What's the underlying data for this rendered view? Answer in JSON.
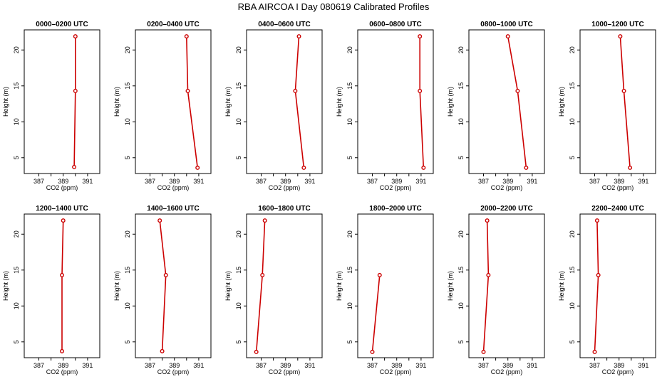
{
  "figure_title": "RBA AIRCOA I  Day 080619  Calibrated Profiles",
  "chart_data": [
    {
      "type": "line",
      "title": "0000–0200 UTC",
      "xlabel": "CO2 (ppm)",
      "ylabel": "Height (m)",
      "xlim": [
        385.8,
        392.0
      ],
      "ylim": [
        2.8,
        22.8
      ],
      "x_ticks": [
        387,
        389,
        391
      ],
      "x_tick_labels": [
        "387",
        "389",
        "391"
      ],
      "x_minor_ticks": [
        388,
        390
      ],
      "y_ticks": [
        5,
        10,
        15,
        20
      ],
      "y_tick_labels": [
        "5",
        "10",
        "15",
        "20"
      ],
      "color": "#cc0000",
      "x": [
        389.9,
        390.0,
        390.0
      ],
      "y": [
        3.7,
        14.3,
        21.9
      ]
    },
    {
      "type": "line",
      "title": "0200–0400 UTC",
      "xlabel": "CO2 (ppm)",
      "ylabel": "Height (m)",
      "xlim": [
        385.8,
        392.0
      ],
      "ylim": [
        2.8,
        22.8
      ],
      "x_ticks": [
        387,
        389,
        391
      ],
      "x_tick_labels": [
        "387",
        "389",
        "391"
      ],
      "x_minor_ticks": [
        388,
        390
      ],
      "y_ticks": [
        5,
        10,
        15,
        20
      ],
      "y_tick_labels": [
        "5",
        "10",
        "15",
        "20"
      ],
      "color": "#cc0000",
      "x": [
        390.9,
        390.1,
        390.0
      ],
      "y": [
        3.6,
        14.3,
        21.9
      ]
    },
    {
      "type": "line",
      "title": "0400–0600 UTC",
      "xlabel": "CO2 (ppm)",
      "ylabel": "Height (m)",
      "xlim": [
        385.8,
        392.0
      ],
      "ylim": [
        2.8,
        22.8
      ],
      "x_ticks": [
        387,
        389,
        391
      ],
      "x_tick_labels": [
        "387",
        "389",
        "391"
      ],
      "x_minor_ticks": [
        388,
        390
      ],
      "y_ticks": [
        5,
        10,
        15,
        20
      ],
      "y_tick_labels": [
        "5",
        "10",
        "15",
        "20"
      ],
      "color": "#cc0000",
      "x": [
        390.5,
        389.8,
        390.1
      ],
      "y": [
        3.6,
        14.3,
        21.9
      ]
    },
    {
      "type": "line",
      "title": "0600–0800 UTC",
      "xlabel": "CO2 (ppm)",
      "ylabel": "Height (m)",
      "xlim": [
        385.8,
        392.0
      ],
      "ylim": [
        2.8,
        22.8
      ],
      "x_ticks": [
        387,
        389,
        391
      ],
      "x_tick_labels": [
        "387",
        "389",
        "391"
      ],
      "x_minor_ticks": [
        388,
        390
      ],
      "y_ticks": [
        5,
        10,
        15,
        20
      ],
      "y_tick_labels": [
        "5",
        "10",
        "15",
        "20"
      ],
      "color": "#cc0000",
      "x": [
        391.2,
        390.9,
        390.9
      ],
      "y": [
        3.6,
        14.3,
        21.9
      ]
    },
    {
      "type": "line",
      "title": "0800–1000 UTC",
      "xlabel": "CO2 (ppm)",
      "ylabel": "Height (m)",
      "xlim": [
        385.8,
        392.0
      ],
      "ylim": [
        2.8,
        22.8
      ],
      "x_ticks": [
        387,
        389,
        391
      ],
      "x_tick_labels": [
        "387",
        "389",
        "391"
      ],
      "x_minor_ticks": [
        388,
        390
      ],
      "y_ticks": [
        5,
        10,
        15,
        20
      ],
      "y_tick_labels": [
        "5",
        "10",
        "15",
        "20"
      ],
      "color": "#cc0000",
      "x": [
        390.5,
        389.8,
        389.0
      ],
      "y": [
        3.6,
        14.3,
        21.9
      ]
    },
    {
      "type": "line",
      "title": "1000–1200 UTC",
      "xlabel": "CO2 (ppm)",
      "ylabel": "Height (m)",
      "xlim": [
        385.8,
        392.0
      ],
      "ylim": [
        2.8,
        22.8
      ],
      "x_ticks": [
        387,
        389,
        391
      ],
      "x_tick_labels": [
        "387",
        "389",
        "391"
      ],
      "x_minor_ticks": [
        388,
        390
      ],
      "y_ticks": [
        5,
        10,
        15,
        20
      ],
      "y_tick_labels": [
        "5",
        "10",
        "15",
        "20"
      ],
      "color": "#cc0000",
      "x": [
        389.9,
        389.4,
        389.1
      ],
      "y": [
        3.6,
        14.3,
        21.9
      ]
    },
    {
      "type": "line",
      "title": "1200–1400 UTC",
      "xlabel": "CO2 (ppm)",
      "ylabel": "Height (m)",
      "xlim": [
        385.8,
        392.0
      ],
      "ylim": [
        2.8,
        22.8
      ],
      "x_ticks": [
        387,
        389,
        391
      ],
      "x_tick_labels": [
        "387",
        "389",
        "391"
      ],
      "x_minor_ticks": [
        388,
        390
      ],
      "y_ticks": [
        5,
        10,
        15,
        20
      ],
      "y_tick_labels": [
        "5",
        "10",
        "15",
        "20"
      ],
      "color": "#cc0000",
      "x": [
        388.9,
        388.9,
        389.0
      ],
      "y": [
        3.7,
        14.3,
        21.9
      ]
    },
    {
      "type": "line",
      "title": "1400–1600 UTC",
      "xlabel": "CO2 (ppm)",
      "ylabel": "Height (m)",
      "xlim": [
        385.8,
        392.0
      ],
      "ylim": [
        2.8,
        22.8
      ],
      "x_ticks": [
        387,
        389,
        391
      ],
      "x_tick_labels": [
        "387",
        "389",
        "391"
      ],
      "x_minor_ticks": [
        388,
        390
      ],
      "y_ticks": [
        5,
        10,
        15,
        20
      ],
      "y_tick_labels": [
        "5",
        "10",
        "15",
        "20"
      ],
      "color": "#cc0000",
      "x": [
        388.0,
        388.3,
        387.8
      ],
      "y": [
        3.7,
        14.3,
        21.9
      ]
    },
    {
      "type": "line",
      "title": "1600–1800 UTC",
      "xlabel": "CO2 (ppm)",
      "ylabel": "Height (m)",
      "xlim": [
        385.8,
        392.0
      ],
      "ylim": [
        2.8,
        22.8
      ],
      "x_ticks": [
        387,
        389,
        391
      ],
      "x_tick_labels": [
        "387",
        "389",
        "391"
      ],
      "x_minor_ticks": [
        388,
        390
      ],
      "y_ticks": [
        5,
        10,
        15,
        20
      ],
      "y_tick_labels": [
        "5",
        "10",
        "15",
        "20"
      ],
      "color": "#cc0000",
      "x": [
        386.6,
        387.1,
        387.3
      ],
      "y": [
        3.6,
        14.3,
        21.9
      ]
    },
    {
      "type": "line",
      "title": "1800–2000 UTC",
      "xlabel": "CO2 (ppm)",
      "ylabel": "Height (m)",
      "xlim": [
        385.8,
        392.0
      ],
      "ylim": [
        2.8,
        22.8
      ],
      "x_ticks": [
        387,
        389,
        391
      ],
      "x_tick_labels": [
        "387",
        "389",
        "391"
      ],
      "x_minor_ticks": [
        388,
        390
      ],
      "y_ticks": [
        5,
        10,
        15,
        20
      ],
      "y_tick_labels": [
        "5",
        "10",
        "15",
        "20"
      ],
      "color": "#cc0000",
      "x": [
        387.0,
        387.6
      ],
      "y": [
        3.6,
        14.3
      ]
    },
    {
      "type": "line",
      "title": "2000–2200 UTC",
      "xlabel": "CO2 (ppm)",
      "ylabel": "Height (m)",
      "xlim": [
        385.8,
        392.0
      ],
      "ylim": [
        2.8,
        22.8
      ],
      "x_ticks": [
        387,
        389,
        391
      ],
      "x_tick_labels": [
        "387",
        "389",
        "391"
      ],
      "x_minor_ticks": [
        388,
        390
      ],
      "y_ticks": [
        5,
        10,
        15,
        20
      ],
      "y_tick_labels": [
        "5",
        "10",
        "15",
        "20"
      ],
      "color": "#cc0000",
      "x": [
        387.0,
        387.4,
        387.3
      ],
      "y": [
        3.6,
        14.3,
        21.9
      ]
    },
    {
      "type": "line",
      "title": "2200–2400 UTC",
      "xlabel": "CO2 (ppm)",
      "ylabel": "Height (m)",
      "xlim": [
        385.8,
        392.0
      ],
      "ylim": [
        2.8,
        22.8
      ],
      "x_ticks": [
        387,
        389,
        391
      ],
      "x_tick_labels": [
        "387",
        "389",
        "391"
      ],
      "x_minor_ticks": [
        388,
        390
      ],
      "y_ticks": [
        5,
        10,
        15,
        20
      ],
      "y_tick_labels": [
        "5",
        "10",
        "15",
        "20"
      ],
      "color": "#cc0000",
      "x": [
        387.0,
        387.3,
        387.2
      ],
      "y": [
        3.6,
        14.3,
        21.9
      ]
    }
  ]
}
